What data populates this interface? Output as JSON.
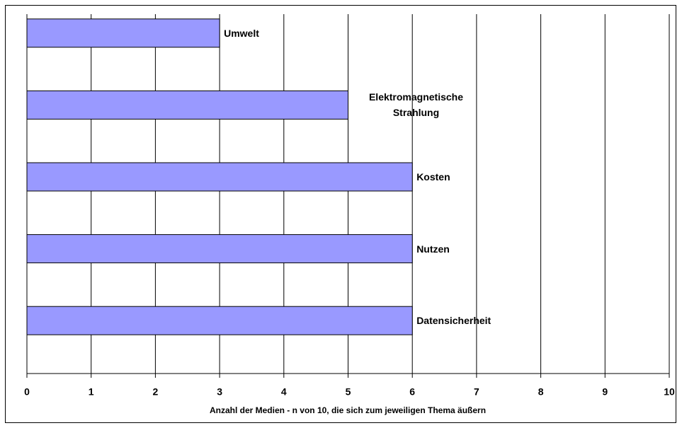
{
  "chart_data": {
    "type": "bar",
    "orientation": "horizontal",
    "categories": [
      "Umwelt",
      "Elektromagnetische Strahlung",
      "Kosten",
      "Nutzen",
      "Datensicherheit"
    ],
    "values": [
      3,
      5,
      6,
      6,
      6
    ],
    "color": "#9999ff",
    "xlabel": "Anzahl der Medien - n von 10, die sich zum jeweiligen Thema äußern",
    "xlim": [
      0,
      10
    ],
    "xticks": [
      0,
      1,
      2,
      3,
      4,
      5,
      6,
      7,
      8,
      9,
      10
    ],
    "grid": true
  }
}
